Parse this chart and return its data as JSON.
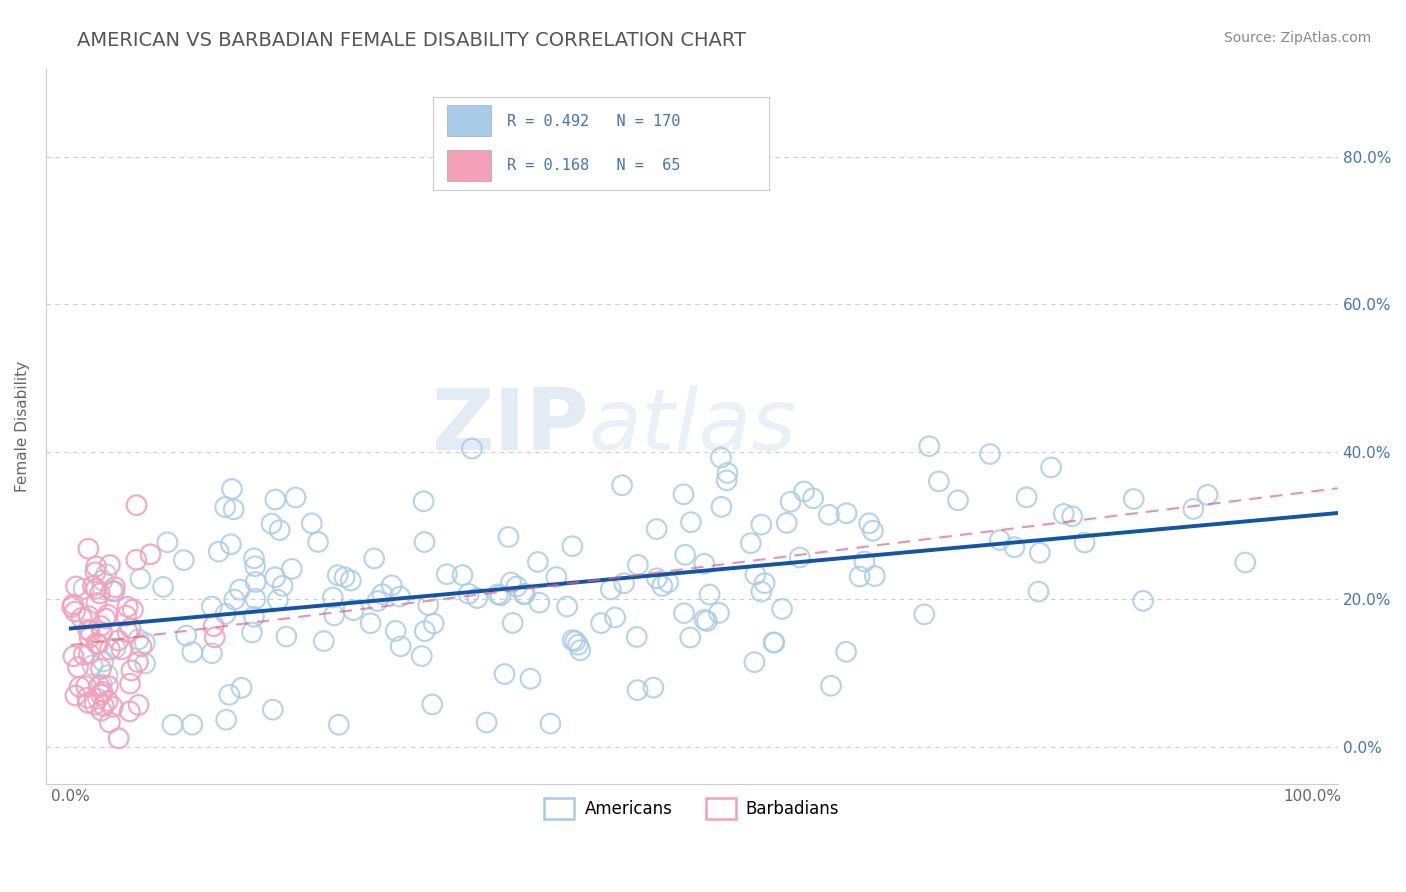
{
  "title": "AMERICAN VS BARBADIAN FEMALE DISABILITY CORRELATION CHART",
  "source": "Source: ZipAtlas.com",
  "ylabel": "Female Disability",
  "xlim": [
    -0.02,
    1.02
  ],
  "ylim": [
    -0.05,
    0.92
  ],
  "american_R": 0.492,
  "american_N": 170,
  "barbadian_R": 0.168,
  "barbadian_N": 65,
  "american_color": "#a8cce8",
  "barbadian_color": "#f4a0b8",
  "american_line_color": "#1155aa",
  "barbadian_line_color": "#dd6688",
  "background_color": "#ffffff",
  "grid_color": "#cccccc",
  "watermark_zip": "ZIP",
  "watermark_atlas": "atlas",
  "ytick_labels": [
    "0.0%",
    "20.0%",
    "40.0%",
    "60.0%",
    "80.0%"
  ],
  "ytick_values": [
    0.0,
    0.2,
    0.4,
    0.6,
    0.8
  ],
  "xtick_bottom_labels": [
    "0.0%",
    "100.0%"
  ],
  "xtick_bottom_values": [
    0.0,
    1.0
  ],
  "title_color": "#555555",
  "legend_R_color": "#4472c4",
  "title_fontsize": 14,
  "axis_label_fontsize": 11,
  "tick_fontsize": 11,
  "right_tick_color": "#4472c4",
  "source_color": "#888888"
}
